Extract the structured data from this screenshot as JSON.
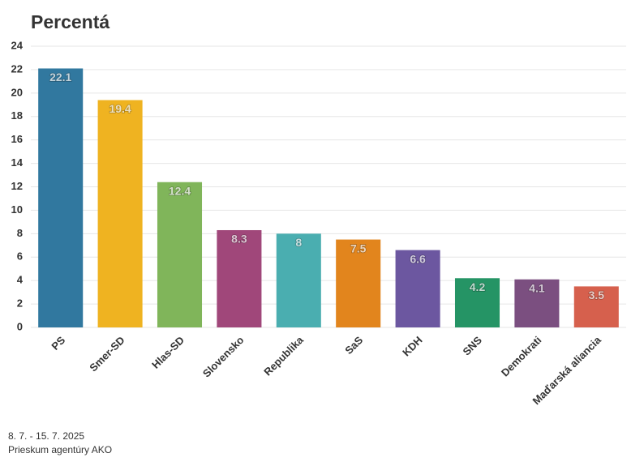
{
  "chart_data": {
    "type": "bar",
    "title": "Percentá",
    "categories": [
      "PS",
      "Smer-SD",
      "Hlas-SD",
      "Slovensko",
      "Republika",
      "SaS",
      "KDH",
      "SNS",
      "Demokrati",
      "Maďarská aliancia"
    ],
    "values": [
      22.1,
      19.4,
      12.4,
      8.3,
      8,
      7.5,
      6.6,
      4.2,
      4.1,
      3.5
    ],
    "colors": [
      "#31789f",
      "#efb321",
      "#80b55a",
      "#a0477a",
      "#4aaeb0",
      "#e2851d",
      "#6c57a0",
      "#259465",
      "#7b4f80",
      "#d6604d"
    ],
    "ylim": [
      0,
      24
    ],
    "yticks": [
      0,
      2,
      4,
      6,
      8,
      10,
      12,
      14,
      16,
      18,
      20,
      22,
      24
    ],
    "grid": true,
    "footer": [
      "8. 7. - 15. 7. 2025",
      "Prieskum agentúry AKO"
    ]
  }
}
